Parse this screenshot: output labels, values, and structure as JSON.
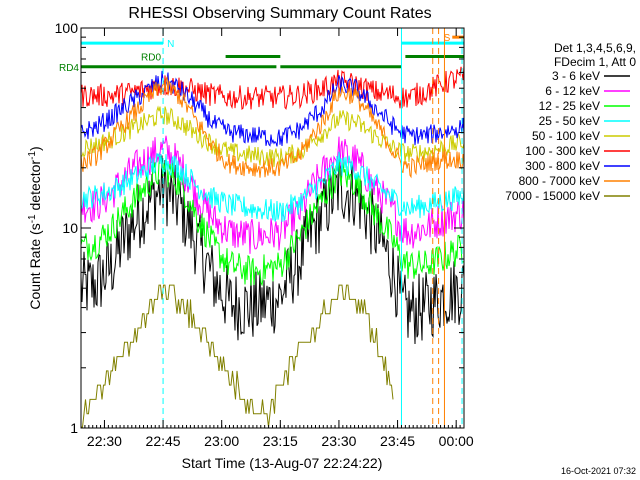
{
  "chart_data": {
    "type": "line",
    "title": "RHESSI Observing Summary Count Rates",
    "xlabel": "Start Time (13-Aug-07 22:24:22)",
    "ylabel": "Count Rate (s",
    "ylabel_sup": "-1",
    "ylabel_tail": " detector",
    "ylabel_end": ")",
    "footer": "16-Oct-2021 07:32",
    "y_scale": "log",
    "ylim": [
      1,
      100
    ],
    "y_ticks": [
      {
        "value": 1,
        "label": "1"
      },
      {
        "value": 10,
        "label": "10"
      },
      {
        "value": 100,
        "label": "100"
      }
    ],
    "xlim_min": [
      0,
      98
    ],
    "x_ticks": [
      {
        "value": 6,
        "label": "22:30"
      },
      {
        "value": 21,
        "label": "22:45"
      },
      {
        "value": 36,
        "label": "23:00"
      },
      {
        "value": 51,
        "label": "23:15"
      },
      {
        "value": 66,
        "label": "23:30"
      },
      {
        "value": 81,
        "label": "23:45"
      },
      {
        "value": 96,
        "label": "00:00"
      }
    ],
    "legend": {
      "position": "right",
      "header": [
        "Det 1,3,4,5,6,9,",
        "FDecim 1, Att 0"
      ],
      "entries": [
        {
          "label": "3 - 6 keV",
          "color": "#000000"
        },
        {
          "label": "6 - 12 keV",
          "color": "#ff00ff"
        },
        {
          "label": "12 - 25 keV",
          "color": "#00ff00"
        },
        {
          "label": "25 - 50 keV",
          "color": "#00ffff"
        },
        {
          "label": "50 - 100 keV",
          "color": "#cccc00"
        },
        {
          "label": "100 - 300 keV",
          "color": "#ff0000"
        },
        {
          "label": "300 - 800 keV",
          "color": "#0000ff"
        },
        {
          "label": "800 - 7000 keV",
          "color": "#ff8000"
        },
        {
          "label": "7000 - 15000 keV",
          "color": "#808000"
        }
      ]
    },
    "series": [
      {
        "name": "3 - 6 keV",
        "color": "#000000",
        "noise": 0.18,
        "x": [
          0,
          4,
          8,
          14,
          21,
          25,
          30,
          34,
          38,
          44,
          51,
          56,
          62,
          66,
          70,
          75,
          80,
          82,
          84,
          88,
          92,
          95,
          98
        ],
        "values": [
          5,
          5.2,
          6.5,
          11,
          16,
          13,
          8,
          5.5,
          4.2,
          4,
          4.5,
          7,
          12,
          16,
          15,
          10,
          6,
          4,
          3.8,
          4,
          4.5,
          4.8,
          5
        ]
      },
      {
        "name": "6 - 12 keV",
        "color": "#ff00ff",
        "noise": 0.09,
        "x": [
          0,
          4,
          8,
          14,
          21,
          25,
          30,
          34,
          38,
          44,
          51,
          56,
          62,
          66,
          70,
          75,
          80,
          82,
          84,
          88,
          92,
          95,
          98
        ],
        "values": [
          13,
          13,
          15,
          20,
          25,
          21,
          14,
          11,
          9.5,
          9,
          9.5,
          12,
          19,
          24,
          22,
          16,
          12,
          10,
          9.5,
          10,
          11,
          11.5,
          12
        ]
      },
      {
        "name": "12 - 25 keV",
        "color": "#00ff00",
        "noise": 0.08,
        "x": [
          0,
          4,
          8,
          14,
          21,
          25,
          30,
          34,
          38,
          44,
          51,
          56,
          62,
          66,
          70,
          75,
          80,
          82,
          84,
          88,
          92,
          95,
          98
        ],
        "values": [
          8,
          8.5,
          10,
          14,
          20,
          17,
          11,
          8,
          6.5,
          6,
          6.5,
          9,
          14,
          19,
          17,
          12,
          8.5,
          7,
          6.5,
          6.5,
          7,
          7.5,
          8
        ]
      },
      {
        "name": "25 - 50 keV",
        "color": "#00ffff",
        "noise": 0.06,
        "x": [
          0,
          4,
          8,
          14,
          21,
          25,
          30,
          34,
          38,
          44,
          51,
          56,
          62,
          66,
          70,
          75,
          80,
          82,
          84,
          88,
          92,
          95,
          98
        ],
        "values": [
          14,
          14.5,
          15.5,
          18,
          22,
          20,
          16,
          14,
          13,
          12.5,
          12,
          13.5,
          17,
          21,
          20,
          16.5,
          14,
          13,
          12.5,
          13,
          13.5,
          14,
          14.5
        ]
      },
      {
        "name": "50 - 100 keV",
        "color": "#cccc00",
        "noise": 0.05,
        "x": [
          0,
          4,
          8,
          14,
          21,
          25,
          30,
          34,
          38,
          44,
          51,
          56,
          62,
          66,
          70,
          75,
          80,
          82,
          84,
          88,
          92,
          95,
          98
        ],
        "values": [
          25,
          26,
          28,
          32,
          37,
          34,
          29,
          26,
          24,
          23,
          22.5,
          24,
          30,
          35,
          34,
          29,
          25,
          24,
          23.5,
          24,
          25,
          26,
          27
        ]
      },
      {
        "name": "100 - 300 keV",
        "color": "#ff0000",
        "noise": 0.06,
        "x": [
          0,
          4,
          8,
          14,
          21,
          25,
          30,
          34,
          38,
          44,
          51,
          56,
          62,
          66,
          70,
          75,
          80,
          82,
          84,
          88,
          92,
          95,
          98
        ],
        "values": [
          46,
          46,
          46,
          48,
          52,
          51,
          48,
          46,
          45,
          45,
          45,
          46,
          50,
          54,
          52,
          48,
          46,
          45,
          45,
          48,
          52,
          55,
          57
        ]
      },
      {
        "name": "300 - 800 keV",
        "color": "#0000ff",
        "noise": 0.05,
        "x": [
          0,
          4,
          8,
          14,
          21,
          25,
          30,
          34,
          38,
          44,
          51,
          56,
          62,
          66,
          70,
          75,
          80,
          82,
          84,
          88,
          92,
          95,
          98
        ],
        "values": [
          30,
          32,
          36,
          44,
          55,
          50,
          40,
          33,
          30,
          29,
          28,
          31,
          40,
          52,
          50,
          40,
          32,
          30,
          29,
          29,
          30,
          31,
          32
        ]
      },
      {
        "name": "800 - 7000 keV",
        "color": "#ff8000",
        "noise": 0.05,
        "x": [
          0,
          4,
          8,
          14,
          21,
          25,
          30,
          34,
          38,
          44,
          51,
          56,
          62,
          66,
          70,
          75,
          80,
          82,
          84,
          88,
          92,
          95,
          98
        ],
        "values": [
          21,
          23,
          28,
          38,
          52,
          46,
          33,
          25,
          21,
          20,
          20,
          23,
          34,
          48,
          46,
          34,
          24,
          21,
          20,
          21,
          22,
          22,
          22
        ]
      },
      {
        "name": "7000 - 15000 keV",
        "color": "#808000",
        "noise": 0.0,
        "step": true,
        "x": [
          0,
          2,
          4,
          7,
          10,
          13,
          16,
          19,
          22,
          24,
          27,
          30,
          33,
          36,
          39,
          42,
          45,
          48,
          50,
          53,
          56,
          59,
          62,
          65,
          68,
          71,
          74,
          77,
          80
        ],
        "values": [
          1,
          1.3,
          1.5,
          1.8,
          2.2,
          2.8,
          3.4,
          4.2,
          5,
          4.5,
          3.8,
          3.2,
          2.6,
          2.1,
          1.7,
          1.4,
          1.2,
          1.2,
          1.5,
          1.9,
          2.4,
          3,
          3.7,
          4.5,
          5,
          4.2,
          3.2,
          2.2,
          1.5
        ]
      }
    ],
    "flag_bars": [
      {
        "label": "RD4",
        "color": "#008000",
        "x1": 0,
        "x2": 82,
        "y": 64,
        "gap": [
          50,
          51
        ],
        "label_pos": "left"
      },
      {
        "label": "RD0",
        "color": "#008000",
        "x1": 21,
        "x2": 21,
        "y": 72,
        "label_pos": "left"
      },
      {
        "label": "",
        "color": "#008000",
        "x1": 37,
        "x2": 51,
        "y": 72
      },
      {
        "label": "",
        "color": "#008000",
        "x1": 83,
        "x2": 98,
        "y": 72
      },
      {
        "label": "N",
        "color": "#00ffff",
        "x1": 0,
        "x2": 21,
        "y": 84,
        "label_pos": "right"
      },
      {
        "label": "",
        "color": "#00ffff",
        "x1": 82,
        "x2": 98,
        "y": 84
      },
      {
        "label": "S",
        "color": "#ff8000",
        "x1": 95,
        "x2": 98,
        "y": 90,
        "label_pos": "left"
      }
    ],
    "vlines": [
      {
        "x": 0,
        "color": "#00ffff",
        "dash": false
      },
      {
        "x": 21,
        "color": "#00ffff",
        "dash": true
      },
      {
        "x": 82,
        "color": "#00ffff",
        "dash": false
      },
      {
        "x": 90,
        "color": "#ff8000",
        "dash": true
      },
      {
        "x": 91.5,
        "color": "#ff8000",
        "dash": true
      },
      {
        "x": 93,
        "color": "#ff8000",
        "dash": false
      },
      {
        "x": 97.5,
        "color": "#00ffff",
        "dash": true
      }
    ]
  }
}
